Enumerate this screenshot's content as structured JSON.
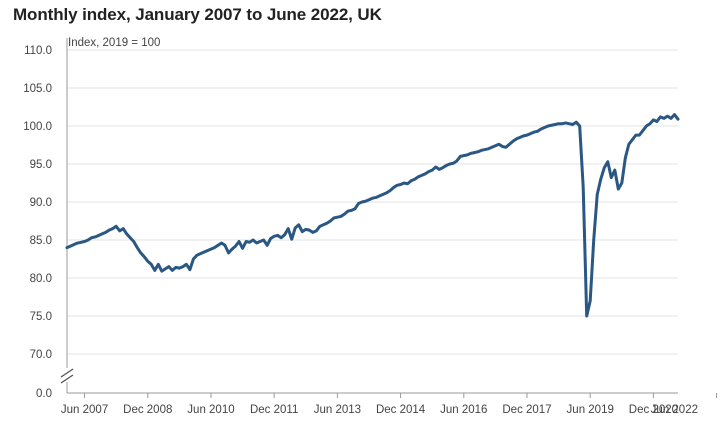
{
  "chart_data": {
    "type": "line",
    "title": "Monthly index, January 2007 to June 2022, UK",
    "ylabel": "Index, 2019 = 100",
    "xlabel": "",
    "ylim": [
      0,
      110
    ],
    "y_axis_break": true,
    "y_ticks": [
      "110.0",
      "105.0",
      "100.0",
      "95.0",
      "90.0",
      "85.0",
      "80.0",
      "75.0",
      "70.0",
      "0.0"
    ],
    "x_ticks": [
      "Jun 2007",
      "Dec 2008",
      "Jun 2010",
      "Dec 2011",
      "Jun 2013",
      "Dec 2014",
      "Jun 2016",
      "Dec 2017",
      "Jun 2019",
      "Dec 2020",
      "Jun 2022"
    ],
    "grid": true,
    "line_color": "#2a5783",
    "x_start": "Jan 2007",
    "x_end": "Jun 2022",
    "series": [
      {
        "values": [
          84.0,
          84.2,
          84.4,
          84.6,
          84.7,
          84.8,
          85.0,
          85.3,
          85.4,
          85.6,
          85.8,
          86.0,
          86.3,
          86.5,
          86.8,
          86.2,
          86.5,
          85.8,
          85.3,
          84.8,
          84.0,
          83.3,
          82.8,
          82.2,
          81.8,
          81.0,
          81.8,
          80.9,
          81.2,
          81.5,
          81.0,
          81.4,
          81.3,
          81.5,
          81.8,
          81.1,
          82.5,
          83.0,
          83.2,
          83.4,
          83.6,
          83.8,
          84.0,
          84.3,
          84.6,
          84.3,
          83.3,
          83.8,
          84.2,
          84.8,
          83.9,
          84.8,
          84.7,
          85.0,
          84.6,
          84.8,
          85.0,
          84.3,
          85.2,
          85.5,
          85.6,
          85.3,
          85.7,
          86.5,
          85.1,
          86.6,
          87.0,
          86.1,
          86.4,
          86.3,
          86.0,
          86.2,
          86.8,
          87.0,
          87.2,
          87.5,
          87.9,
          88.0,
          88.1,
          88.4,
          88.8,
          88.9,
          89.1,
          89.8,
          90.0,
          90.1,
          90.3,
          90.5,
          90.6,
          90.8,
          91.0,
          91.2,
          91.5,
          91.9,
          92.2,
          92.3,
          92.5,
          92.4,
          92.8,
          93.0,
          93.3,
          93.5,
          93.7,
          94.0,
          94.2,
          94.6,
          94.3,
          94.5,
          94.8,
          95.0,
          95.1,
          95.4,
          96.0,
          96.1,
          96.2,
          96.4,
          96.5,
          96.6,
          96.8,
          96.9,
          97.0,
          97.2,
          97.4,
          97.6,
          97.3,
          97.2,
          97.6,
          98.0,
          98.3,
          98.5,
          98.7,
          98.8,
          99.0,
          99.2,
          99.3,
          99.6,
          99.8,
          100.0,
          100.1,
          100.2,
          100.3,
          100.3,
          100.4,
          100.3,
          100.2,
          100.5,
          100.0,
          92.0,
          75.0,
          77.0,
          85.0,
          91.0,
          93.0,
          94.5,
          95.3,
          93.2,
          94.2,
          91.7,
          92.5,
          95.8,
          97.6,
          98.2,
          98.8,
          98.8,
          99.4,
          100.0,
          100.3,
          100.8,
          100.6,
          101.2,
          101.0,
          101.3,
          101.0,
          101.5,
          100.9
        ]
      }
    ]
  }
}
